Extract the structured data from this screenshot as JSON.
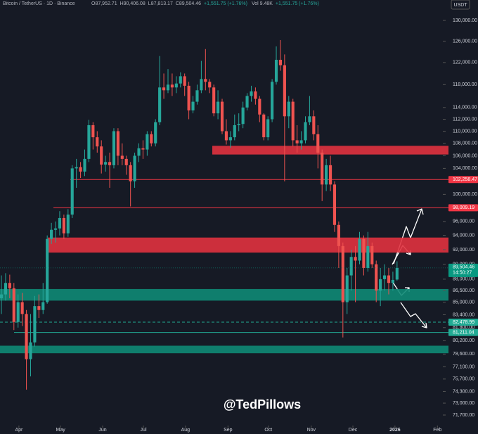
{
  "chart_data": {
    "type": "candlestick",
    "header": {
      "symbol": "Bitcoin / TetherUS · 1D · Binance",
      "ohlc": [
        "O87,952.71",
        "H90,406.08",
        "L87,813.17",
        "C89,504.46",
        "+1,551.75 (+1.76%)"
      ],
      "volume": "Vol 9.48K",
      "volume_change": "+1,551.75 (+1.76%)"
    },
    "currency": "USDT",
    "watermark": "@TedPillows",
    "up_color": "#26a69a",
    "down_color": "#ef5350",
    "log_scale": true,
    "grid": false,
    "open": [
      85500,
      86000,
      87500,
      86800,
      82500,
      85000,
      83500,
      78000,
      80000,
      84500,
      84000,
      85000,
      93500,
      94800,
      95000,
      96500,
      94300,
      97000,
      104000,
      104200,
      103500,
      105500,
      111000,
      109000,
      107500,
      104600,
      105000,
      104500,
      110000,
      106000,
      105500,
      104500,
      102000,
      106000,
      107200,
      107000,
      109500,
      108000,
      111500,
      117500,
      117000,
      118000,
      117500,
      118200,
      119500,
      117800,
      113500,
      115000,
      117000,
      119000,
      118500,
      117500,
      113000,
      115000,
      110000,
      108500,
      109000,
      111000,
      111200,
      114000,
      116000,
      116800,
      115500,
      112800,
      109000,
      112000,
      118500,
      122500,
      121500,
      112500,
      115000,
      108500,
      108000,
      108500,
      111500,
      112500,
      109500,
      106500,
      101500,
      104500,
      101500,
      95500,
      92500,
      85000,
      88500,
      91000,
      90500,
      93500,
      89500,
      92500,
      90000,
      86500,
      88000,
      88500,
      87500,
      87952.71
    ],
    "high": [
      88500,
      88800,
      88600,
      87500,
      86000,
      86200,
      84000,
      83500,
      85800,
      86000,
      87500,
      94000,
      95800,
      96000,
      97500,
      97000,
      97800,
      104500,
      105500,
      105000,
      107000,
      111900,
      111500,
      110000,
      108500,
      106000,
      106500,
      110500,
      110500,
      108000,
      106000,
      105000,
      106500,
      108000,
      108500,
      110000,
      110000,
      112000,
      123200,
      120000,
      120800,
      120000,
      119500,
      120200,
      120000,
      118500,
      116000,
      118000,
      122300,
      124500,
      119000,
      118000,
      117000,
      115500,
      112000,
      110000,
      112800,
      113000,
      115000,
      116500,
      117800,
      117500,
      116000,
      113000,
      112500,
      119000,
      125000,
      126200,
      123500,
      116000,
      115500,
      111000,
      110000,
      112500,
      116000,
      113500,
      111000,
      107000,
      105500,
      106000,
      102000,
      96000,
      93000,
      89500,
      92000,
      92500,
      94500,
      94000,
      94500,
      93000,
      90500,
      89500,
      90000,
      89500,
      89000,
      90406.08
    ],
    "low": [
      83500,
      85200,
      85500,
      81500,
      81800,
      82000,
      74500,
      76000,
      79500,
      83000,
      83500,
      84800,
      92800,
      93000,
      94000,
      93500,
      93800,
      96500,
      101000,
      102500,
      102800,
      105000,
      107000,
      106500,
      103200,
      103500,
      101000,
      104000,
      104500,
      104500,
      103000,
      98200,
      101000,
      105000,
      105500,
      106000,
      107500,
      107500,
      111000,
      115500,
      116500,
      116000,
      116500,
      117500,
      116000,
      112000,
      113000,
      114500,
      116500,
      117000,
      116500,
      112500,
      112000,
      109500,
      107800,
      107300,
      108500,
      110000,
      110500,
      113500,
      115000,
      114500,
      111500,
      108500,
      108500,
      111500,
      118000,
      120500,
      102000,
      110500,
      107500,
      106500,
      107000,
      108000,
      111000,
      108500,
      104000,
      99000,
      100500,
      100500,
      94500,
      89500,
      80600,
      83500,
      86500,
      85000,
      90000,
      88500,
      89000,
      89500,
      85000,
      84500,
      86500,
      86000,
      86500,
      87813.17
    ],
    "close": [
      86000,
      87500,
      86800,
      82500,
      85000,
      83500,
      78000,
      80000,
      84500,
      84000,
      85000,
      93500,
      94800,
      95000,
      96500,
      94300,
      97000,
      104000,
      104200,
      103500,
      105500,
      111000,
      109000,
      107500,
      104600,
      105000,
      104500,
      110000,
      106000,
      105500,
      104500,
      102000,
      106000,
      107200,
      107000,
      109500,
      108000,
      111500,
      117500,
      117000,
      118000,
      117500,
      118200,
      119500,
      117800,
      113500,
      115000,
      117000,
      119000,
      118500,
      117500,
      113000,
      115000,
      110000,
      108500,
      109000,
      111000,
      111200,
      114000,
      116000,
      116800,
      115500,
      112800,
      109000,
      112000,
      118500,
      122500,
      121500,
      112500,
      115000,
      108500,
      108000,
      108500,
      111500,
      112500,
      109500,
      106500,
      101500,
      104500,
      101500,
      95500,
      92500,
      85000,
      88500,
      91000,
      90500,
      93500,
      89500,
      92500,
      90000,
      86500,
      88000,
      88500,
      87500,
      87900,
      89504.46
    ],
    "xlim": [
      -0.34,
      106
    ],
    "xticks": [
      {
        "value": 4.2,
        "label": "Apr"
      },
      {
        "value": 14.2,
        "label": "May"
      },
      {
        "value": 24.3,
        "label": "Jun"
      },
      {
        "value": 34.1,
        "label": "Jul"
      },
      {
        "value": 44.2,
        "label": "Aug"
      },
      {
        "value": 54.4,
        "label": "Sep"
      },
      {
        "value": 64.1,
        "label": "Oct"
      },
      {
        "value": 74.4,
        "label": "Nov"
      },
      {
        "value": 84.4,
        "label": "Dec"
      },
      {
        "value": 94.5,
        "label": "2026"
      },
      {
        "value": 104.7,
        "label": "Feb"
      }
    ],
    "ylim": [
      70570,
      134060
    ],
    "yticks": [
      {
        "value": 130000,
        "label": "130,000.00"
      },
      {
        "value": 126000,
        "label": "126,000.00"
      },
      {
        "value": 122000,
        "label": "122,000.00"
      },
      {
        "value": 118000,
        "label": "118,000.00"
      },
      {
        "value": 114000,
        "label": "114,000.00"
      },
      {
        "value": 112000,
        "label": "112,000.00"
      },
      {
        "value": 110000,
        "label": "110,000.00"
      },
      {
        "value": 108000,
        "label": "108,000.00"
      },
      {
        "value": 106000,
        "label": "106,000.00"
      },
      {
        "value": 104000,
        "label": "104,000.00"
      },
      {
        "value": 100000,
        "label": "100,000.00"
      },
      {
        "value": 96000,
        "label": "96,000.00"
      },
      {
        "value": 94000,
        "label": "94,000.00"
      },
      {
        "value": 92000,
        "label": "92,000.00"
      },
      {
        "value": 90000,
        "label": "90,000.00"
      },
      {
        "value": 88000,
        "label": "88,000.00"
      },
      {
        "value": 86500,
        "label": "86,500.00"
      },
      {
        "value": 85000,
        "label": "85,000.00"
      },
      {
        "value": 83400,
        "label": "83,400.00"
      },
      {
        "value": 81800,
        "label": "81,800.00"
      },
      {
        "value": 80200,
        "label": "80,200.00"
      },
      {
        "value": 78600,
        "label": "78,600.00"
      },
      {
        "value": 77100,
        "label": "77,100.00"
      },
      {
        "value": 75700,
        "label": "75,700.00"
      },
      {
        "value": 74300,
        "label": "74,300.00"
      },
      {
        "value": 73000,
        "label": "73,000.00"
      },
      {
        "value": 71700,
        "label": "71,700.00"
      }
    ],
    "zones": [
      {
        "low": 106200,
        "high": 107600,
        "color": "#e0323f"
      },
      {
        "low": 91600,
        "high": 93700,
        "color": "#e0323f"
      },
      {
        "low": 85200,
        "high": 86700,
        "color": "#0e8a75"
      },
      {
        "low": 78700,
        "high": 79600,
        "color": "#0e8a75"
      }
    ],
    "price_lines": [
      {
        "value": 102258.47,
        "label": "102,258.47",
        "color": "#f23645",
        "style": "solid"
      },
      {
        "value": 98009.19,
        "label": "98,009.19",
        "color": "#f23645",
        "style": "solid"
      },
      {
        "value": 82478.99,
        "label": "82,478.99",
        "color": "#22ab94",
        "style": "dashed"
      },
      {
        "value": 81211.04,
        "label": "81,211.04",
        "color": "#22ab94",
        "style": "solid"
      }
    ],
    "last_price": {
      "value": 89504.46,
      "label": "89,504.46",
      "countdown": "14:50:27",
      "color": "#089981"
    }
  }
}
